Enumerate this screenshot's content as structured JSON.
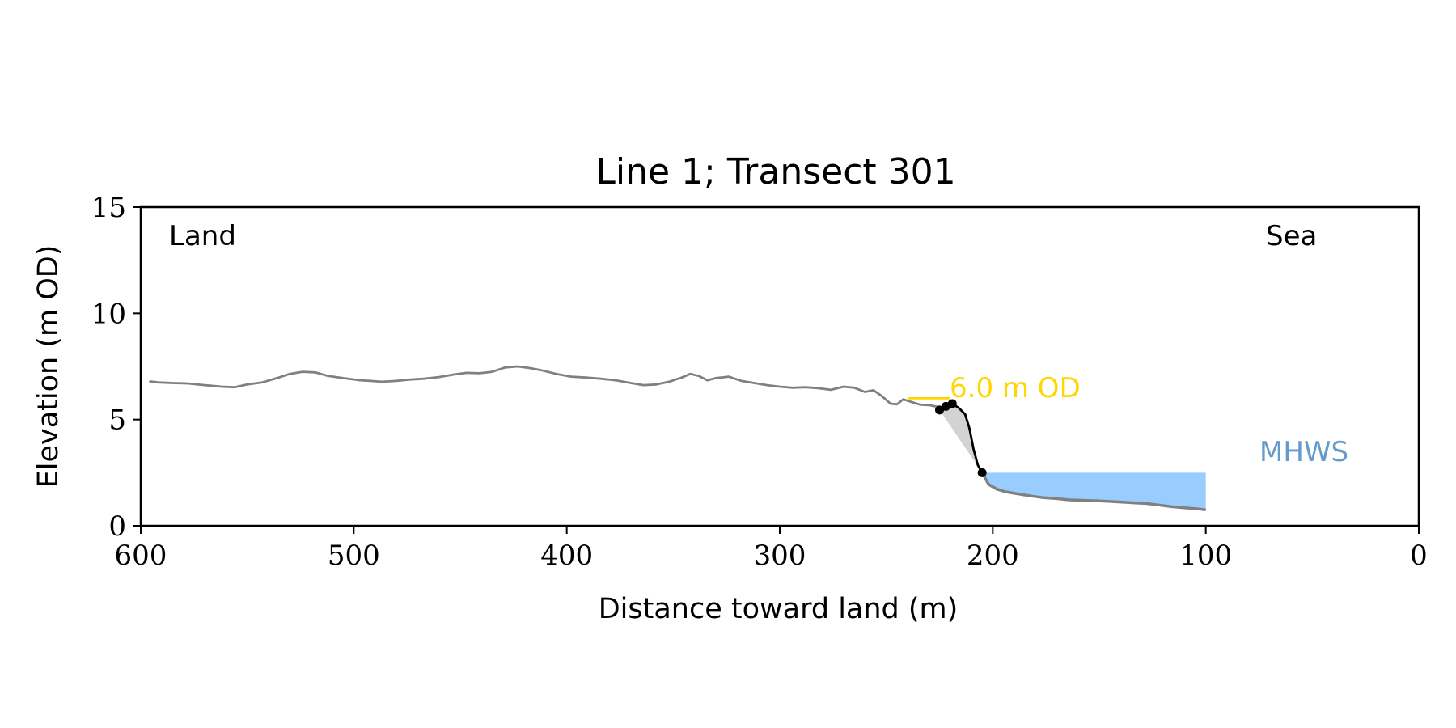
{
  "chart_data": {
    "type": "line",
    "title": "Line 1; Transect 301",
    "xlabel": "Distance toward land (m)",
    "ylabel": "Elevation (m OD)",
    "xlim": [
      600,
      0
    ],
    "ylim": [
      0,
      15
    ],
    "x_ticks": [
      600,
      500,
      400,
      300,
      200,
      100,
      0
    ],
    "y_ticks": [
      0,
      5,
      10,
      15
    ],
    "grid": false,
    "annotations": {
      "land": "Land",
      "sea": "Sea",
      "mhws": "MHWS",
      "od_level": "6.0 m OD"
    },
    "colors": {
      "profile": "#808080",
      "cliff": "#000000",
      "cliff_fill": "#d3d3d3",
      "water": "#99ccff",
      "mhws_text": "#6699cc",
      "od_line": "#ffd700"
    },
    "mhws_level": 2.5,
    "water_x": [
      205,
      100
    ],
    "od_marker": {
      "y": 6.0,
      "x": [
        240,
        220
      ]
    },
    "series": [
      {
        "role": "profile",
        "x": [
          596,
          592,
          585,
          578,
          570,
          562,
          556,
          550,
          543,
          536,
          530,
          524,
          518,
          512,
          505,
          497,
          492,
          487,
          480,
          474,
          467,
          460,
          453,
          447,
          441,
          435,
          429,
          423,
          417,
          412,
          405,
          398,
          391,
          384,
          377,
          370,
          364,
          358,
          352,
          346,
          342,
          338,
          334,
          330,
          324,
          318,
          312,
          306,
          300,
          294,
          288,
          282,
          276,
          270,
          265,
          260,
          256,
          252,
          248,
          245,
          242,
          238,
          234,
          230,
          226,
          222
        ],
        "y": [
          6.8,
          6.75,
          6.72,
          6.7,
          6.62,
          6.55,
          6.52,
          6.65,
          6.75,
          6.95,
          7.15,
          7.25,
          7.22,
          7.05,
          6.95,
          6.85,
          6.82,
          6.78,
          6.82,
          6.88,
          6.92,
          7.0,
          7.12,
          7.2,
          7.18,
          7.25,
          7.45,
          7.5,
          7.42,
          7.32,
          7.15,
          7.02,
          6.98,
          6.92,
          6.85,
          6.72,
          6.62,
          6.65,
          6.78,
          6.98,
          7.15,
          7.05,
          6.85,
          6.95,
          7.02,
          6.82,
          6.72,
          6.62,
          6.55,
          6.5,
          6.52,
          6.48,
          6.4,
          6.55,
          6.5,
          6.3,
          6.38,
          6.1,
          5.75,
          5.72,
          5.95,
          5.82,
          5.7,
          5.68,
          5.6,
          5.5
        ]
      },
      {
        "role": "cliff",
        "x": [
          225,
          222,
          219,
          216,
          213,
          211,
          209,
          207,
          205
        ],
        "y": [
          5.45,
          5.62,
          5.75,
          5.55,
          5.25,
          4.6,
          3.6,
          2.85,
          2.5
        ]
      },
      {
        "role": "foreshore",
        "x": [
          205,
          202,
          198,
          194,
          188,
          182,
          176,
          170,
          164,
          158,
          152,
          146,
          140,
          134,
          128,
          122,
          116,
          110,
          104,
          100
        ],
        "y": [
          2.5,
          1.95,
          1.72,
          1.6,
          1.5,
          1.4,
          1.32,
          1.28,
          1.22,
          1.2,
          1.18,
          1.15,
          1.12,
          1.08,
          1.05,
          0.98,
          0.9,
          0.85,
          0.8,
          0.75
        ]
      }
    ]
  }
}
